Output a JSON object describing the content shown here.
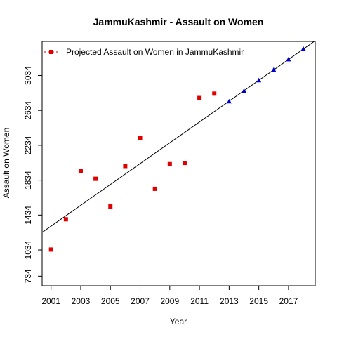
{
  "chart_data": {
    "type": "scatter",
    "title": "JammuKashmir  -  Assault on Women",
    "xlabel": "Year",
    "ylabel": "Assault on Women",
    "xlim": [
      2000.4,
      2018.8
    ],
    "ylim": [
      624,
      3424
    ],
    "x_ticks": [
      2001,
      2003,
      2005,
      2007,
      2009,
      2011,
      2013,
      2015,
      2017
    ],
    "y_ticks": [
      734,
      1034,
      1434,
      1834,
      2234,
      2634,
      3034
    ],
    "grid": false,
    "legend": {
      "position": "top-left",
      "entries": [
        "Projected  Assault on Women  in  JammuKashmir"
      ]
    },
    "trend_line": {
      "x": [
        2000,
        2019
      ],
      "y": [
        1188,
        3456
      ]
    },
    "colors": {
      "observed": "#e00000",
      "projected": "#0000cc",
      "line": "#000000",
      "legend_marker": "#e00000"
    },
    "series": [
      {
        "marker": "square",
        "x": [
          2001,
          2002,
          2003,
          2004,
          2005,
          2006,
          2007,
          2008,
          2009,
          2010,
          2011,
          2012
        ],
        "y": [
          1039,
          1386,
          1937,
          1850,
          1533,
          1996,
          2314,
          1735,
          2018,
          2031,
          2776,
          2826
        ]
      },
      {
        "marker": "triangle",
        "x": [
          2013,
          2014,
          2015,
          2016,
          2017,
          2018
        ],
        "y": [
          2734,
          2855,
          2975,
          3096,
          3216,
          3337
        ]
      }
    ]
  }
}
